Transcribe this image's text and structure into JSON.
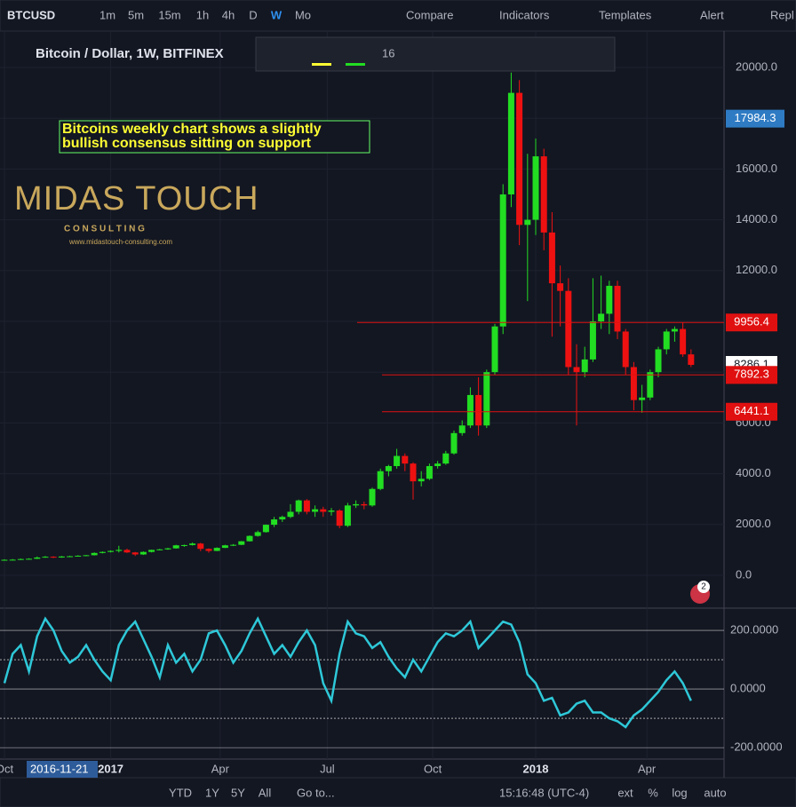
{
  "toolbar": {
    "symbol": "BTCUSD",
    "intervals": [
      "1m",
      "5m",
      "15m",
      "1h",
      "4h",
      "D",
      "W",
      "Mo"
    ],
    "compare": "Compare",
    "indicators": "Indicators",
    "templates": "Templates",
    "alert": "Alert",
    "replay": "Repl"
  },
  "legend": "Bitcoin / Dollar, 1W, BITFINEX",
  "drawing_toolbar": {
    "font_size": "16"
  },
  "logo": {
    "title": "MIDAS TOUCH",
    "subtitle": "C O N S U L T I N G",
    "url": "www.midastouch-consulting.com"
  },
  "crosshair_date": "2016-11-21",
  "badge": "2",
  "bottom_bar": {
    "ranges": [
      "YTD",
      "1Y",
      "5Y",
      "All"
    ],
    "goto": "Go to...",
    "time": "15:16:48 (UTC-4)",
    "options": [
      "ext",
      "%",
      "log",
      "auto"
    ]
  },
  "chart_data": {
    "type": "candlestick",
    "annotation": [
      "Bitcoins weekly chart shows a slightly",
      "bullish consensus sitting on support"
    ],
    "colors": {
      "up": "#22dd22",
      "down": "#ee1111"
    },
    "candles": [
      [
        600,
        630,
        590,
        610
      ],
      [
        610,
        640,
        600,
        615
      ],
      [
        615,
        660,
        605,
        640
      ],
      [
        640,
        670,
        625,
        650
      ],
      [
        650,
        740,
        640,
        700
      ],
      [
        700,
        760,
        690,
        730
      ],
      [
        730,
        750,
        680,
        700
      ],
      [
        700,
        760,
        690,
        740
      ],
      [
        740,
        770,
        720,
        750
      ],
      [
        750,
        790,
        740,
        770
      ],
      [
        770,
        800,
        750,
        790
      ],
      [
        790,
        900,
        780,
        880
      ],
      [
        880,
        940,
        860,
        920
      ],
      [
        920,
        980,
        900,
        960
      ],
      [
        960,
        1160,
        900,
        1000
      ],
      [
        1000,
        1050,
        880,
        900
      ],
      [
        900,
        920,
        760,
        820
      ],
      [
        820,
        940,
        800,
        920
      ],
      [
        920,
        1010,
        900,
        1000
      ],
      [
        1000,
        1040,
        980,
        1020
      ],
      [
        1020,
        1080,
        1000,
        1060
      ],
      [
        1060,
        1200,
        1050,
        1180
      ],
      [
        1180,
        1210,
        1120,
        1190
      ],
      [
        1190,
        1290,
        1170,
        1250
      ],
      [
        1250,
        1280,
        950,
        1040
      ],
      [
        1040,
        1060,
        890,
        960
      ],
      [
        960,
        1100,
        950,
        1080
      ],
      [
        1080,
        1200,
        1070,
        1180
      ],
      [
        1180,
        1230,
        1150,
        1200
      ],
      [
        1200,
        1350,
        1190,
        1340
      ],
      [
        1340,
        1570,
        1330,
        1550
      ],
      [
        1550,
        1760,
        1520,
        1700
      ],
      [
        1700,
        2000,
        1680,
        1990
      ],
      [
        1990,
        2300,
        1900,
        2200
      ],
      [
        2200,
        2350,
        2100,
        2300
      ],
      [
        2300,
        2800,
        2250,
        2500
      ],
      [
        2500,
        2980,
        2400,
        2950
      ],
      [
        2950,
        3000,
        2400,
        2500
      ],
      [
        2500,
        2750,
        2300,
        2600
      ],
      [
        2600,
        2700,
        2300,
        2500
      ],
      [
        2500,
        2650,
        2350,
        2550
      ],
      [
        2550,
        2600,
        1850,
        1950
      ],
      [
        1950,
        2850,
        1900,
        2750
      ],
      [
        2750,
        2950,
        2650,
        2800
      ],
      [
        2800,
        2900,
        2600,
        2750
      ],
      [
        2750,
        3450,
        2700,
        3400
      ],
      [
        3400,
        4200,
        3350,
        4100
      ],
      [
        4100,
        4350,
        3900,
        4300
      ],
      [
        4300,
        4980,
        4200,
        4700
      ],
      [
        4700,
        4800,
        4100,
        4400
      ],
      [
        4400,
        4450,
        2980,
        3700
      ],
      [
        3700,
        4100,
        3500,
        3800
      ],
      [
        3800,
        4400,
        3750,
        4300
      ],
      [
        4300,
        4500,
        4200,
        4400
      ],
      [
        4400,
        4900,
        4350,
        4800
      ],
      [
        4800,
        5700,
        4750,
        5600
      ],
      [
        5600,
        6100,
        5500,
        5900
      ],
      [
        5900,
        7400,
        5800,
        7100
      ],
      [
        7100,
        7800,
        5500,
        5900
      ],
      [
        5900,
        8100,
        5800,
        8000
      ],
      [
        8000,
        9900,
        7900,
        9800
      ],
      [
        9800,
        15400,
        9500,
        15000
      ],
      [
        15000,
        19800,
        14500,
        19000
      ],
      [
        19000,
        19500,
        13000,
        13800
      ],
      [
        13800,
        16600,
        10800,
        14000
      ],
      [
        14000,
        17200,
        13400,
        16500
      ],
      [
        16500,
        16800,
        12800,
        13500
      ],
      [
        13500,
        14300,
        9400,
        11500
      ],
      [
        11500,
        12200,
        9800,
        11200
      ],
      [
        11200,
        11700,
        7900,
        8200
      ],
      [
        8200,
        9100,
        5900,
        8000
      ],
      [
        8000,
        9000,
        7800,
        8500
      ],
      [
        8500,
        11700,
        8400,
        10000
      ],
      [
        10000,
        11800,
        9700,
        10300
      ],
      [
        10300,
        11600,
        9500,
        11400
      ],
      [
        11400,
        11600,
        9300,
        9600
      ],
      [
        9600,
        9700,
        7900,
        8200
      ],
      [
        8200,
        8400,
        6500,
        6900
      ],
      [
        6900,
        7500,
        6400,
        7000
      ],
      [
        7000,
        8100,
        6900,
        8000
      ],
      [
        8000,
        9000,
        7800,
        8900
      ],
      [
        8900,
        9700,
        8700,
        9600
      ],
      [
        9600,
        9800,
        9200,
        9700
      ],
      [
        9700,
        9950,
        8600,
        8700
      ],
      [
        8700,
        8900,
        8200,
        8286
      ]
    ],
    "xlim": [
      -0.54,
      88.04
    ],
    "xticks": [
      {
        "value": 0,
        "label": "Oct"
      },
      {
        "value": 13,
        "label": "2017"
      },
      {
        "value": 26.4,
        "label": "Apr"
      },
      {
        "value": 39.5,
        "label": "Jul"
      },
      {
        "value": 52.4,
        "label": "Oct"
      },
      {
        "value": 65,
        "label": "2018"
      },
      {
        "value": 78.6,
        "label": "Apr"
      }
    ],
    "ylim": [
      -1294,
      21433
    ],
    "yticks": [
      {
        "value": 0,
        "label": "0.0"
      },
      {
        "value": 2000,
        "label": "2000.0"
      },
      {
        "value": 4000,
        "label": "4000.0"
      },
      {
        "value": 6000,
        "label": "6000.0"
      },
      {
        "value": 8000,
        "label": "8000.0"
      },
      {
        "value": 10000,
        "label": "10000.0"
      },
      {
        "value": 12000,
        "label": "12000.0"
      },
      {
        "value": 14000,
        "label": "14000.0"
      },
      {
        "value": 16000,
        "label": "16000.0"
      },
      {
        "value": 18000,
        "label": "18000.0"
      },
      {
        "value": 20000,
        "label": "20000.0"
      }
    ],
    "levels": [
      9956.4,
      7892.3,
      6441.1
    ],
    "marker": 17984.3,
    "last_price": 8286.1,
    "oscillator": {
      "ylim": [
        -239,
        276
      ],
      "yticks": [
        {
          "value": 200,
          "label": "200.0000"
        },
        {
          "value": 0,
          "label": "0.0000"
        },
        {
          "value": -200,
          "label": "-200.0000"
        }
      ],
      "reference_lines": [
        100,
        -100
      ],
      "color": "#2ec8d8",
      "values": [
        20,
        120,
        150,
        60,
        180,
        240,
        200,
        130,
        90,
        110,
        150,
        100,
        60,
        30,
        150,
        200,
        230,
        170,
        110,
        40,
        150,
        90,
        120,
        60,
        100,
        190,
        200,
        150,
        90,
        130,
        190,
        240,
        180,
        120,
        150,
        110,
        160,
        200,
        150,
        20,
        -40,
        120,
        230,
        190,
        180,
        140,
        160,
        110,
        70,
        40,
        100,
        60,
        110,
        160,
        190,
        180,
        200,
        230,
        140,
        170,
        200,
        230,
        220,
        160,
        50,
        20,
        -40,
        -30,
        -90,
        -80,
        -50,
        -40,
        -80,
        -80,
        -100,
        -110,
        -130,
        -90,
        -70,
        -40,
        -10,
        30,
        60,
        20,
        -40
      ]
    }
  }
}
